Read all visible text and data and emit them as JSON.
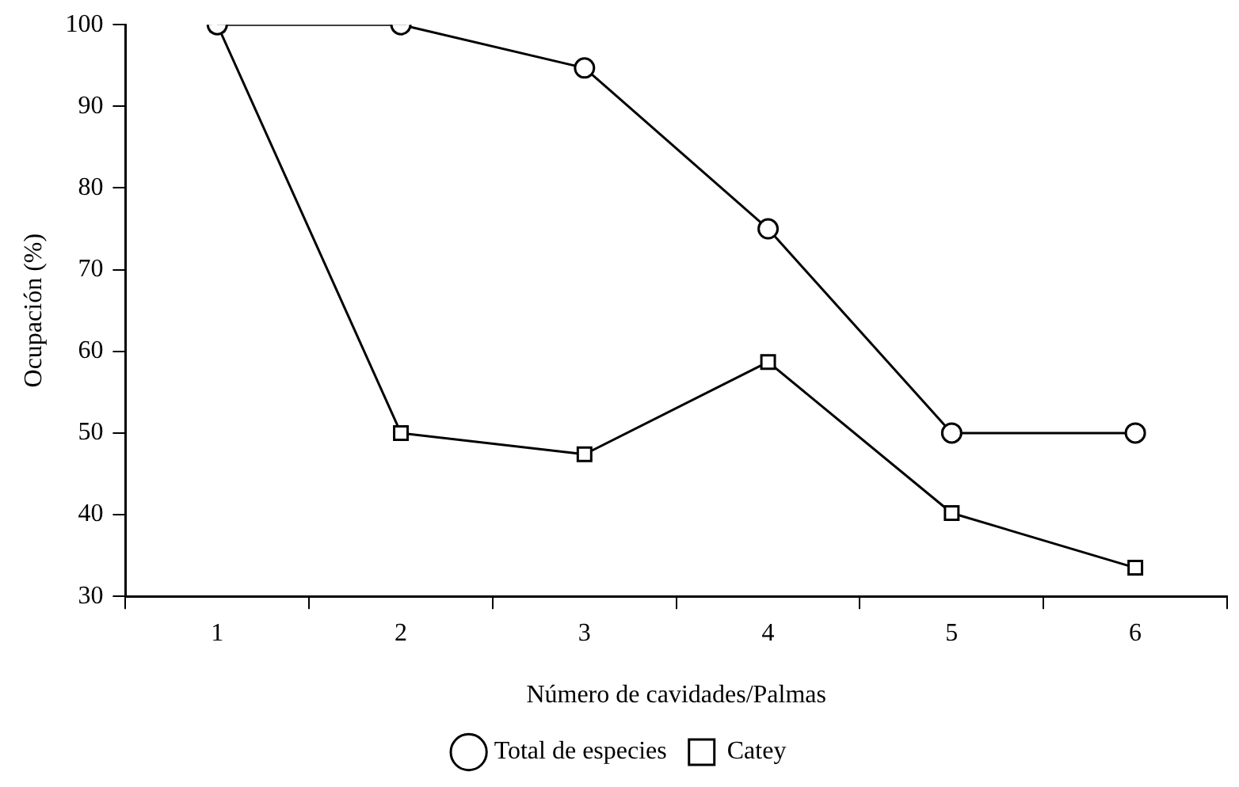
{
  "chart_data": {
    "type": "line",
    "xlabel": "Número de cavidades/Palmas",
    "ylabel": "Ocupación (%)",
    "categories": [
      "1",
      "2",
      "3",
      "4",
      "5",
      "6"
    ],
    "series": [
      {
        "name": "Total de especies",
        "color": "#000000",
        "marker": "circle",
        "values": [
          100,
          100,
          94.7,
          75,
          50,
          50
        ]
      },
      {
        "name": "Catey",
        "color": "#000000",
        "marker": "square",
        "values": [
          100,
          50,
          47.4,
          58.7,
          40.2,
          33.5
        ]
      }
    ],
    "ylim": [
      30,
      100
    ],
    "yticks": [
      30,
      40,
      50,
      60,
      70,
      80,
      90,
      100
    ],
    "grid": false,
    "legend": "bottom",
    "line_style": "solid"
  }
}
